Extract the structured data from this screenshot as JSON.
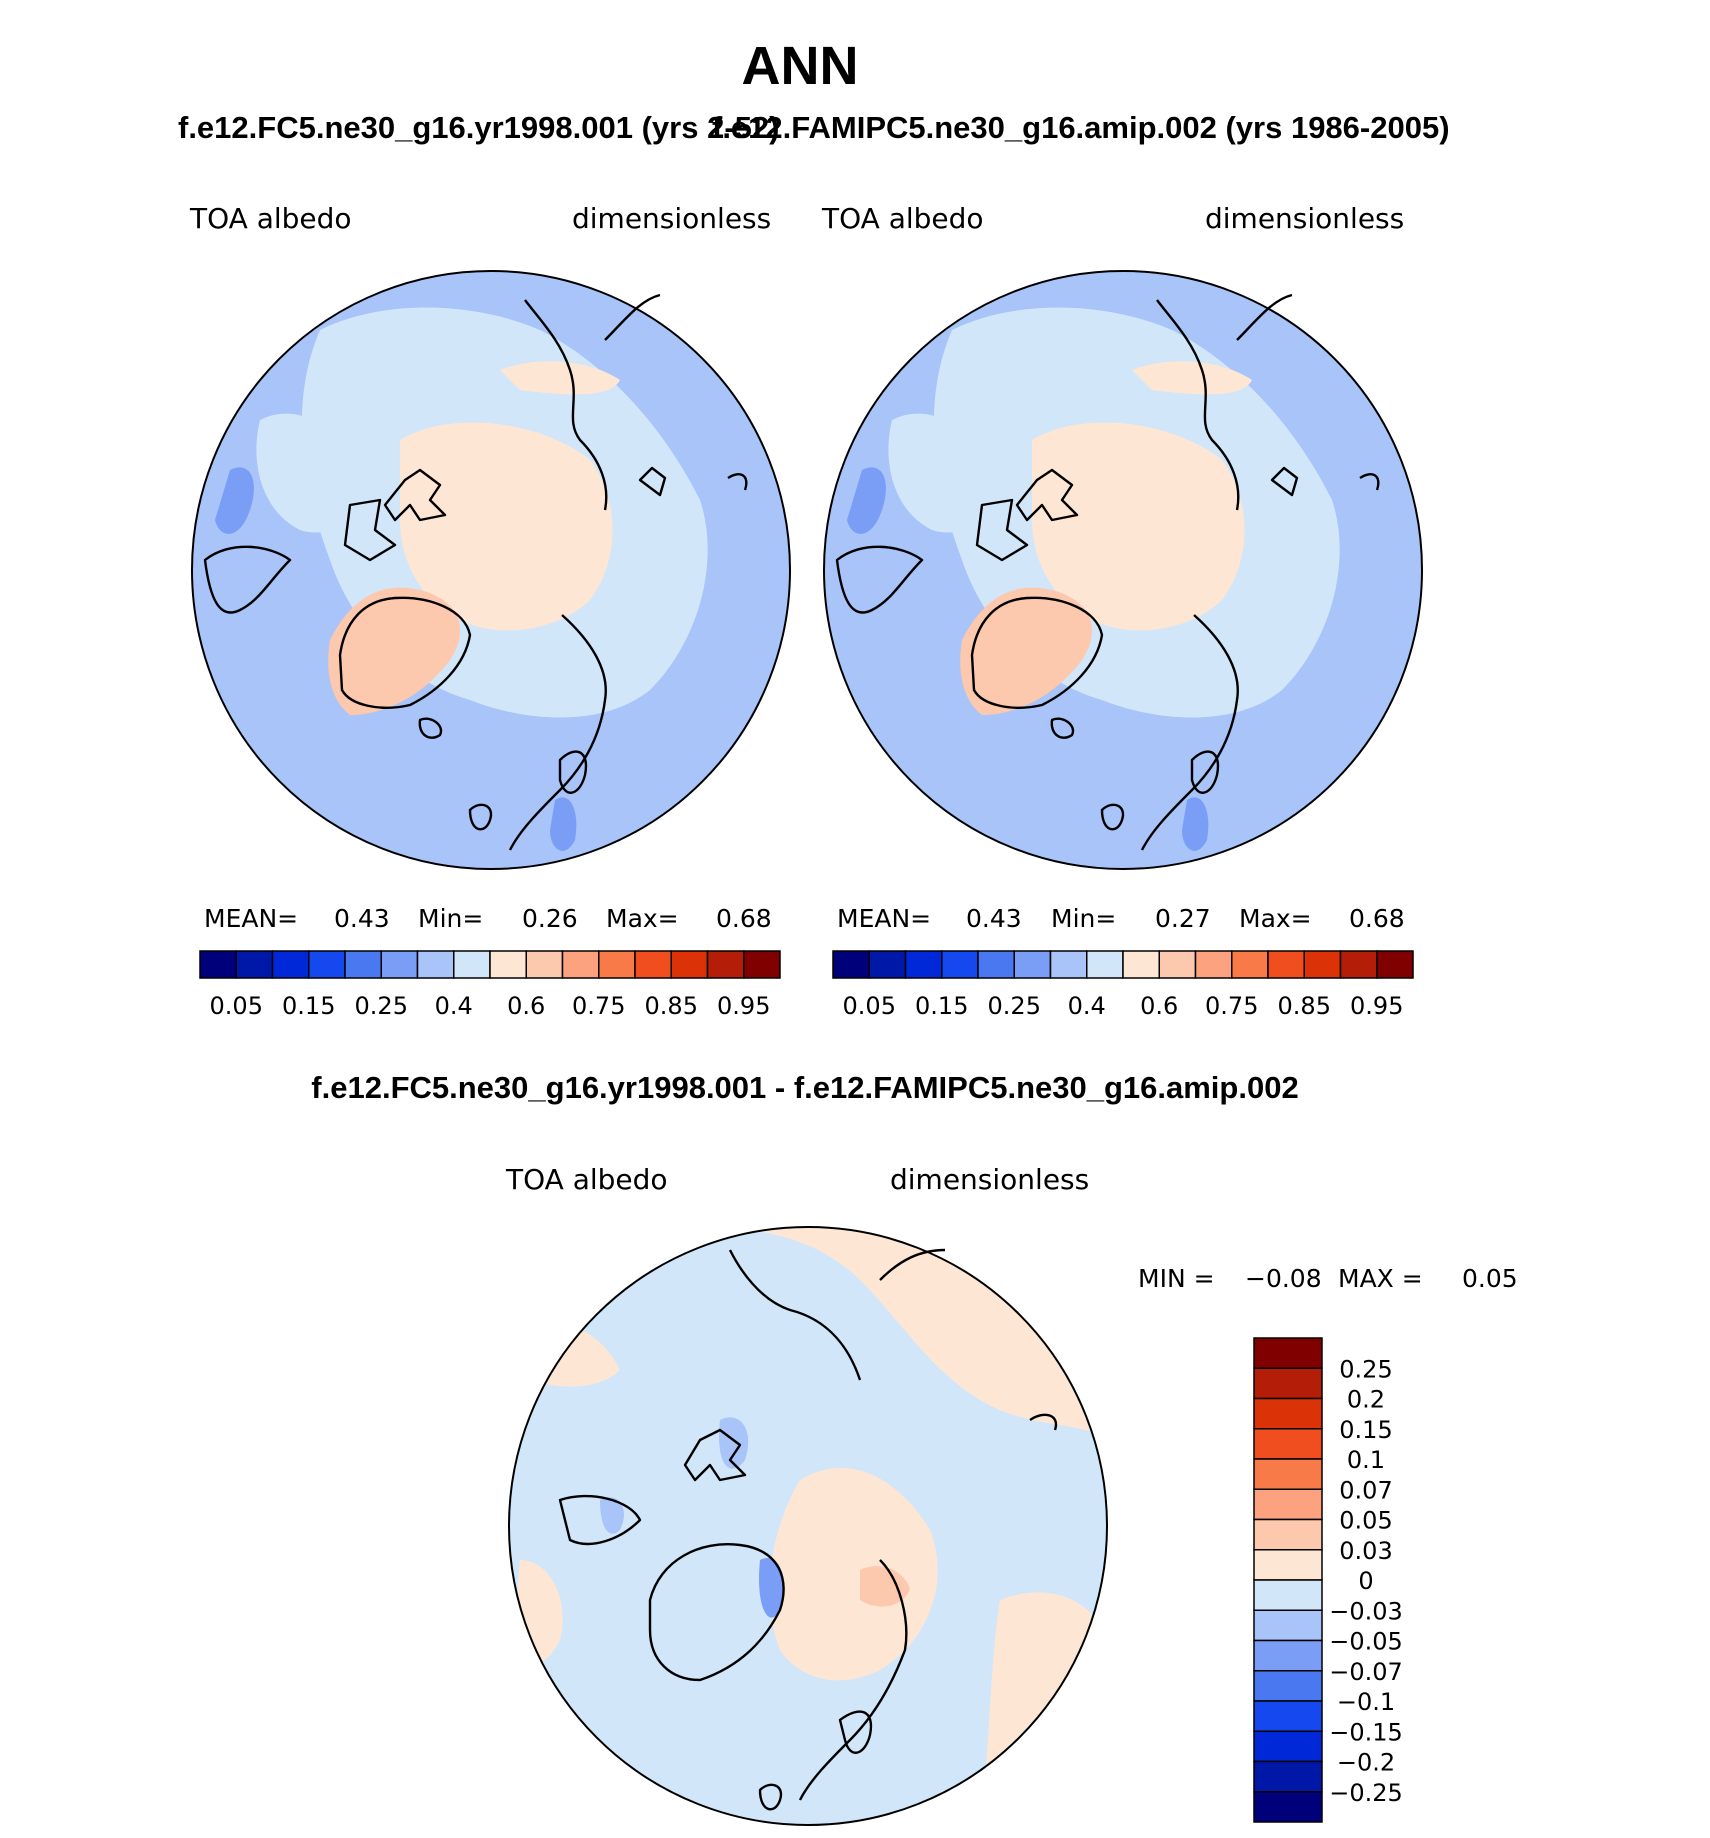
{
  "title": "ANN",
  "left_panel": {
    "case": "f.e12.FC5.ne30_g16.yr1998.001 (yrs 2-52)",
    "variable": "TOA albedo",
    "units": "dimensionless",
    "stats": {
      "mean_label": "MEAN=",
      "mean": "0.43",
      "min_label": "Min=",
      "min": "0.26",
      "max_label": "Max=",
      "max": "0.68"
    }
  },
  "right_panel": {
    "case": "f.e12.FAMIPC5.ne30_g16.amip.002 (yrs 1986-2005)",
    "variable": "TOA albedo",
    "units": "dimensionless",
    "stats": {
      "mean_label": "MEAN=",
      "mean": "0.43",
      "min_label": "Min=",
      "min": "0.27",
      "max_label": "Max=",
      "max": "0.68"
    }
  },
  "abs_colorbar": {
    "colors": [
      "#00007a",
      "#0018a8",
      "#0028d8",
      "#1648f0",
      "#4a78f0",
      "#7a9ef6",
      "#a8c4f8",
      "#d2e6fa",
      "#fde7d4",
      "#fcc8ae",
      "#fca27e",
      "#f87a48",
      "#f04e1e",
      "#dc3208",
      "#b41e08",
      "#800000"
    ],
    "tick_labels": [
      "0.05",
      "0.15",
      "0.25",
      "0.4",
      "0.6",
      "0.75",
      "0.85",
      "0.95"
    ]
  },
  "diff_panel": {
    "title": "f.e12.FC5.ne30_g16.yr1998.001 - f.e12.FAMIPC5.ne30_g16.amip.002",
    "variable": "TOA albedo",
    "units": "dimensionless",
    "stats": {
      "min_label": "MIN =",
      "min": "−0.08",
      "max_label": "MAX =",
      "max": "0.05"
    }
  },
  "diff_colorbar": {
    "colors": [
      "#800000",
      "#b41e08",
      "#dc3208",
      "#f04e1e",
      "#f87a48",
      "#fca27e",
      "#fcc8ae",
      "#fde7d4",
      "#d2e6fa",
      "#a8c4f8",
      "#7a9ef6",
      "#4a78f0",
      "#1648f0",
      "#0028d8",
      "#0018a8",
      "#00007a"
    ],
    "tick_labels": [
      "0.25",
      "0.2",
      "0.15",
      "0.1",
      "0.07",
      "0.05",
      "0.03",
      "0",
      "−0.03",
      "−0.05",
      "−0.07",
      "−0.1",
      "−0.15",
      "−0.2",
      "−0.25"
    ]
  }
}
